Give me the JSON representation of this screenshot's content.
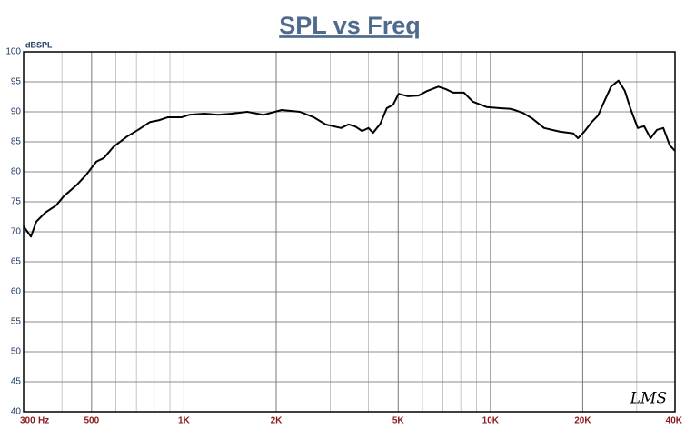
{
  "chart_data": {
    "type": "line",
    "title": "SPL vs Freq",
    "ylabel": "dBSPL",
    "xlabel": "Hz",
    "watermark": "LMS",
    "xscale": "log",
    "grid": true,
    "xlim": [
      300,
      40000
    ],
    "ylim": [
      40,
      100
    ],
    "yticks": [
      40,
      45,
      50,
      55,
      60,
      65,
      70,
      75,
      80,
      85,
      90,
      95,
      100
    ],
    "xticks": [
      300,
      500,
      {
        "value": 1000,
        "label": "1K"
      },
      {
        "value": 2000,
        "label": "2K"
      },
      {
        "value": 5000,
        "label": "5K"
      },
      {
        "value": 10000,
        "label": "10K"
      },
      {
        "value": 20000,
        "label": "20K"
      },
      {
        "value": 40000,
        "label": "40K"
      }
    ],
    "xminorticks": [
      400,
      600,
      700,
      800,
      900,
      3000,
      4000,
      6000,
      7000,
      8000,
      9000,
      30000
    ],
    "series": [
      {
        "name": "SPL",
        "color": "#000000",
        "x": [
          300,
          317,
          330,
          353,
          383,
          405,
          449,
          480,
          518,
          548,
          590,
          653,
          709,
          775,
          829,
          887,
          984,
          1040,
          1167,
          1293,
          1433,
          1609,
          1819,
          2084,
          2391,
          2650,
          2900,
          3256,
          3440,
          3610,
          3813,
          4000,
          4140,
          4370,
          4590,
          4815,
          5017,
          5370,
          5820,
          6230,
          6760,
          7140,
          7550,
          8190,
          8760,
          9710,
          10760,
          11690,
          12780,
          13680,
          14960,
          16810,
          18640,
          19290,
          20240,
          21400,
          22450,
          23400,
          24740,
          26150,
          27440,
          28600,
          30230,
          31720,
          33290,
          34920,
          36640,
          38450,
          40000
        ],
        "values": [
          70.9,
          69.2,
          71.7,
          73.2,
          74.4,
          75.9,
          77.9,
          79.5,
          81.7,
          82.3,
          84.2,
          85.9,
          87.0,
          88.3,
          88.6,
          89.1,
          89.1,
          89.5,
          89.7,
          89.5,
          89.7,
          90.0,
          89.5,
          90.3,
          90.0,
          89.1,
          87.9,
          87.3,
          87.9,
          87.6,
          86.8,
          87.3,
          86.5,
          88.0,
          90.6,
          91.2,
          93.0,
          92.6,
          92.7,
          93.5,
          94.2,
          93.8,
          93.2,
          93.2,
          91.7,
          90.8,
          90.6,
          90.5,
          89.8,
          88.9,
          87.3,
          86.7,
          86.4,
          85.6,
          86.7,
          88.3,
          89.4,
          91.5,
          94.2,
          95.2,
          93.5,
          90.6,
          87.3,
          87.6,
          85.6,
          87.0,
          87.3,
          84.4,
          83.5
        ]
      }
    ]
  }
}
